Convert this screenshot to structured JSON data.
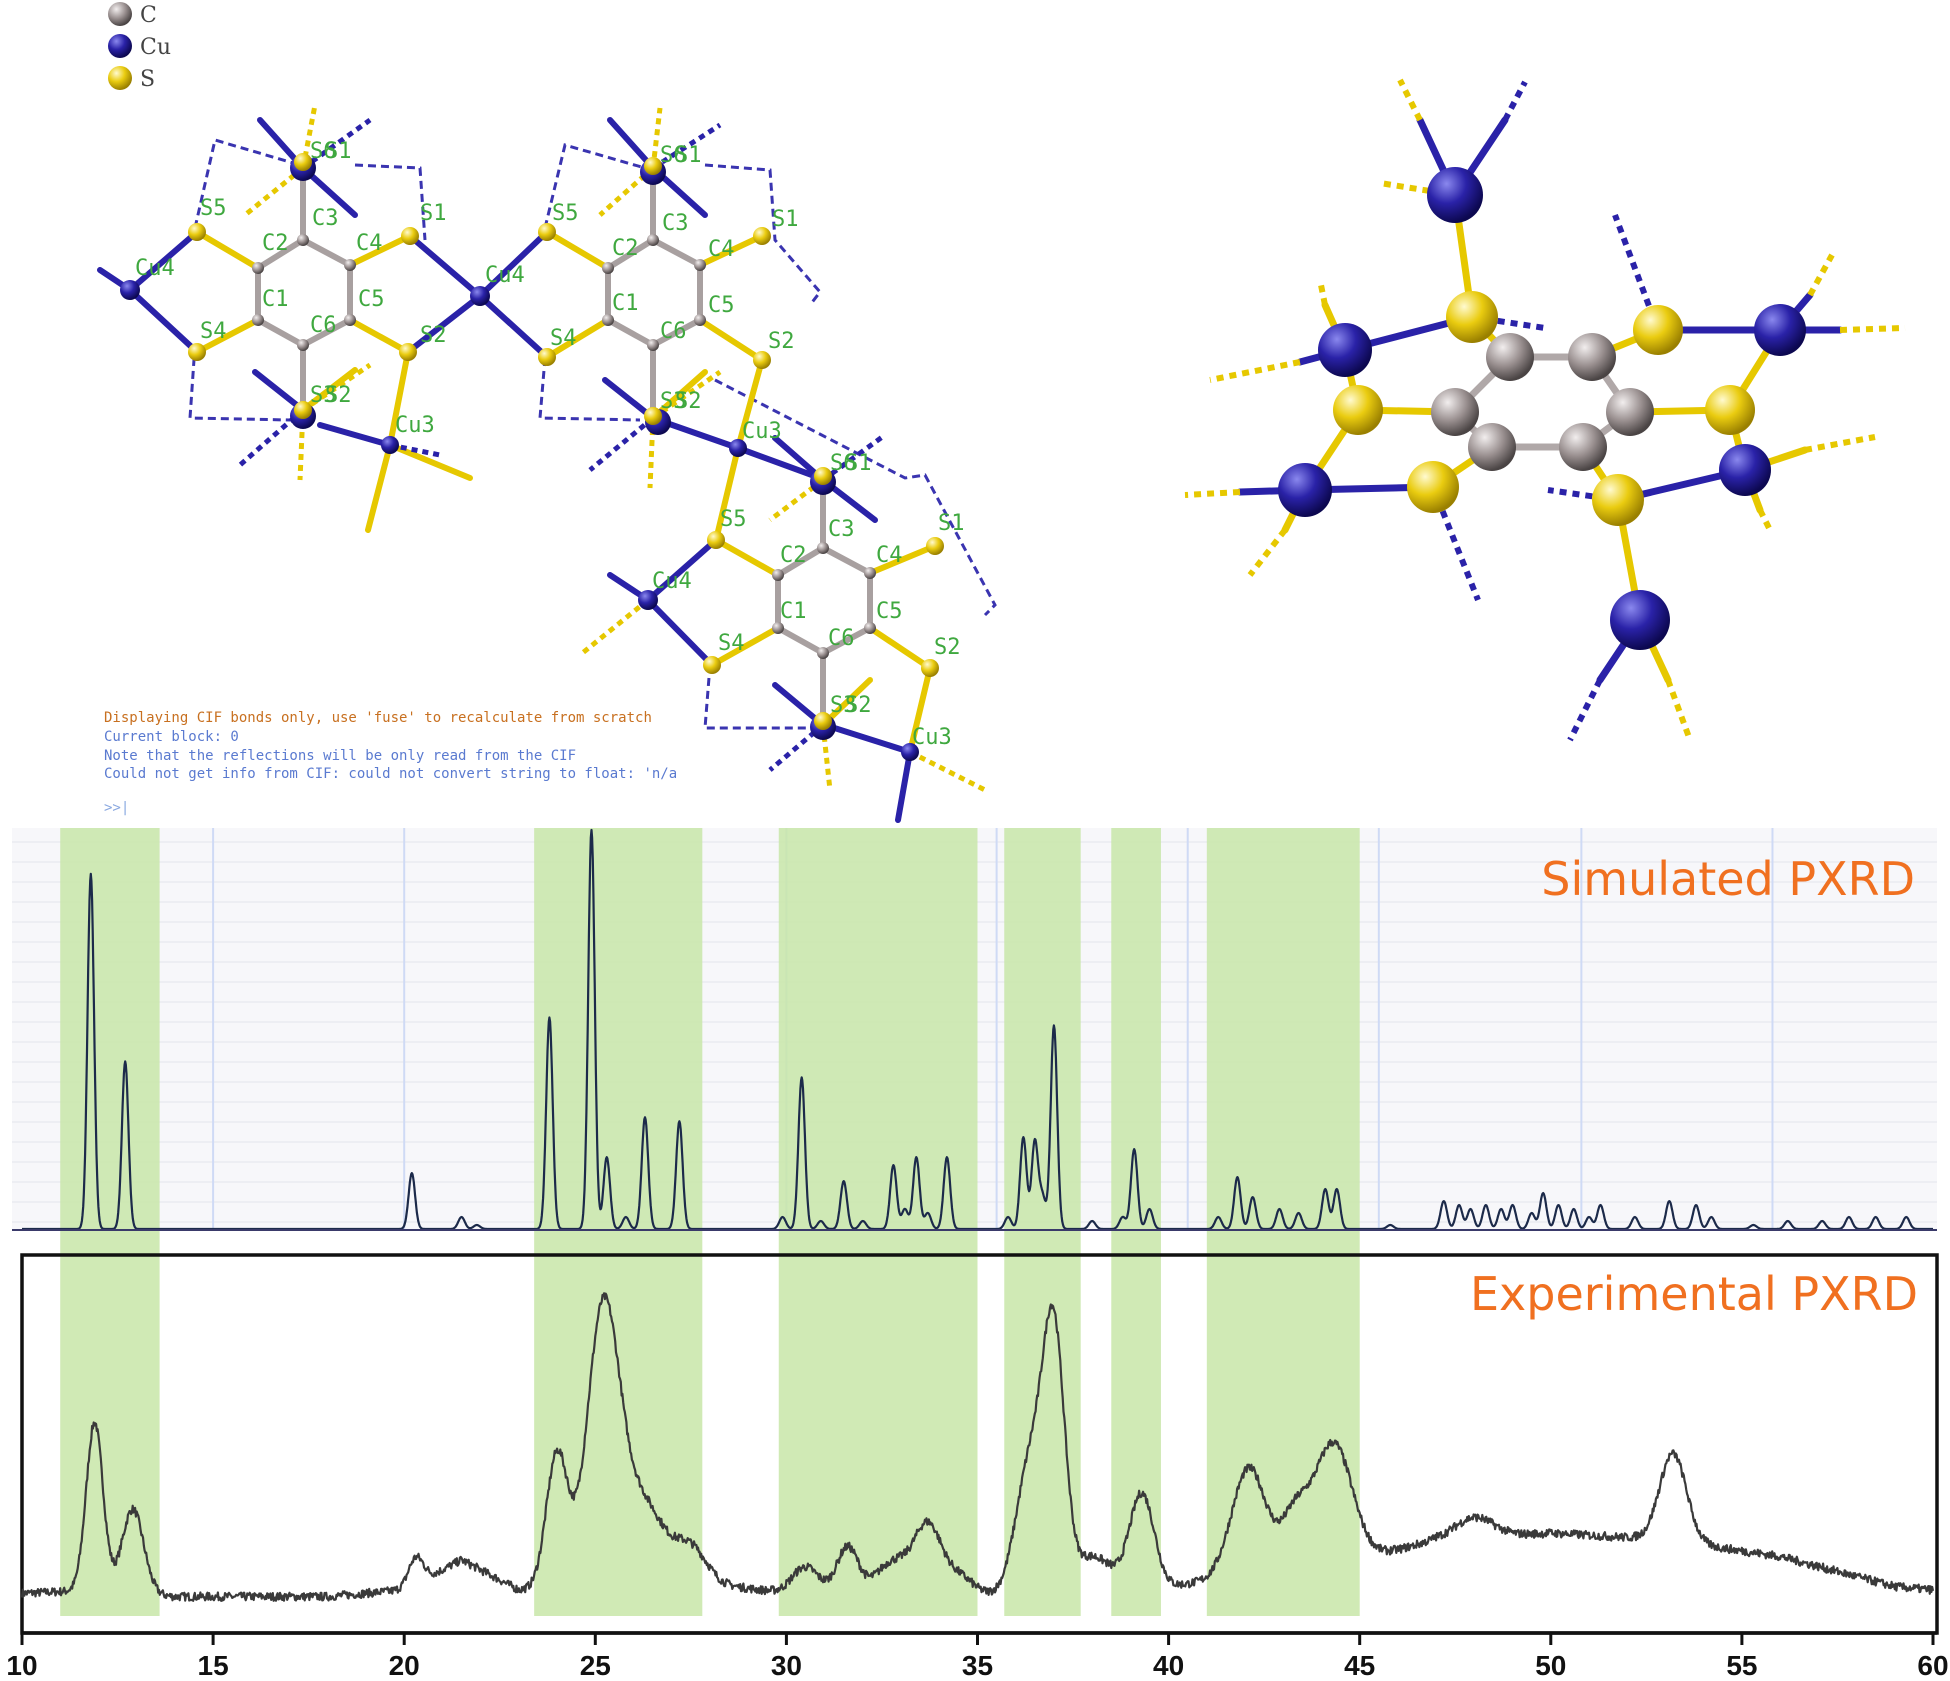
{
  "legend": {
    "items": [
      {
        "label": "C",
        "color": "#8c8c8c"
      },
      {
        "label": "Cu",
        "color": "#1a1a8c"
      },
      {
        "label": "S",
        "color": "#e6c800"
      }
    ]
  },
  "atom_labels": {
    "unit1": [
      "S6",
      "S1",
      "C3",
      "S5",
      "S1",
      "C2",
      "C4",
      "Cu4",
      "Cu4",
      "C1",
      "C5",
      "S4",
      "C6",
      "S2",
      "S3",
      "S2",
      "Cu3"
    ],
    "unit2": [
      "S6",
      "S1",
      "C3",
      "S5",
      "S1",
      "C2",
      "C4",
      "C1",
      "C5",
      "S4",
      "C6",
      "S2",
      "S3",
      "S2",
      "Cu3"
    ],
    "unit3": [
      "S6",
      "S1",
      "C3",
      "S5",
      "S1",
      "C2",
      "C4",
      "Cu4",
      "C1",
      "C5",
      "S4",
      "C6",
      "S2",
      "S3",
      "S2",
      "Cu3"
    ]
  },
  "console": {
    "line1": "Displaying CIF bonds only, use 'fuse' to recalculate from scratch",
    "line2": "Current block: 0",
    "line3": "Note that the reflections will be only read from the CIF",
    "line4": "Could not get info from CIF: could not convert string to float: 'n/a",
    "prompt": ">>|"
  },
  "colors": {
    "highlight": "#c8e6a8",
    "title": "#f07020",
    "sim_line": "#1c2a4a",
    "exp_line": "#3a3a3a",
    "carbon": "#8c8c8c",
    "copper": "#1a1a8c",
    "sulfur": "#e6c800",
    "atom_label": "#3fa83f"
  },
  "chart_data": {
    "type": "line",
    "xlim": [
      10,
      60
    ],
    "x_ticks": [
      "10",
      "15",
      "20",
      "25",
      "30",
      "35",
      "40",
      "45",
      "50",
      "55",
      "60"
    ],
    "highlight_bands": [
      [
        11,
        13.6
      ],
      [
        23.4,
        27.8
      ],
      [
        29.8,
        35
      ],
      [
        35.7,
        37.7
      ],
      [
        38.5,
        39.8
      ],
      [
        41.0,
        45.0
      ]
    ],
    "series": [
      {
        "name": "Simulated PXRD",
        "peaks": [
          [
            11.8,
            0.89
          ],
          [
            12.7,
            0.42
          ],
          [
            20.2,
            0.14
          ],
          [
            21.5,
            0.03
          ],
          [
            21.9,
            0.01
          ],
          [
            23.8,
            0.53
          ],
          [
            24.9,
            1.0
          ],
          [
            25.3,
            0.18
          ],
          [
            25.8,
            0.03
          ],
          [
            26.3,
            0.28
          ],
          [
            27.2,
            0.27
          ],
          [
            29.9,
            0.03
          ],
          [
            30.4,
            0.38
          ],
          [
            30.9,
            0.02
          ],
          [
            31.5,
            0.12
          ],
          [
            32.0,
            0.02
          ],
          [
            32.8,
            0.16
          ],
          [
            33.1,
            0.05
          ],
          [
            33.4,
            0.18
          ],
          [
            33.7,
            0.04
          ],
          [
            34.2,
            0.18
          ],
          [
            35.8,
            0.03
          ],
          [
            36.2,
            0.23
          ],
          [
            36.5,
            0.22
          ],
          [
            36.7,
            0.08
          ],
          [
            37.0,
            0.51
          ],
          [
            38.0,
            0.02
          ],
          [
            38.8,
            0.03
          ],
          [
            39.1,
            0.2
          ],
          [
            39.5,
            0.05
          ],
          [
            41.3,
            0.03
          ],
          [
            41.8,
            0.13
          ],
          [
            42.2,
            0.08
          ],
          [
            42.9,
            0.05
          ],
          [
            43.4,
            0.04
          ],
          [
            44.1,
            0.1
          ],
          [
            44.4,
            0.1
          ],
          [
            45.8,
            0.01
          ],
          [
            47.2,
            0.07
          ],
          [
            47.6,
            0.06
          ],
          [
            47.9,
            0.05
          ],
          [
            48.3,
            0.06
          ],
          [
            48.7,
            0.05
          ],
          [
            49.0,
            0.06
          ],
          [
            49.5,
            0.04
          ],
          [
            49.8,
            0.09
          ],
          [
            50.2,
            0.06
          ],
          [
            50.6,
            0.05
          ],
          [
            51.0,
            0.03
          ],
          [
            51.3,
            0.06
          ],
          [
            52.2,
            0.03
          ],
          [
            53.1,
            0.07
          ],
          [
            53.8,
            0.06
          ],
          [
            54.2,
            0.03
          ],
          [
            55.3,
            0.01
          ],
          [
            56.2,
            0.02
          ],
          [
            57.1,
            0.02
          ],
          [
            57.8,
            0.03
          ],
          [
            58.5,
            0.03
          ],
          [
            59.3,
            0.03
          ]
        ]
      },
      {
        "name": "Experimental PXRD",
        "baseline": [
          [
            10,
            0.02
          ],
          [
            12,
            0.03
          ],
          [
            14,
            0.01
          ],
          [
            18,
            0.01
          ],
          [
            20,
            0.03
          ],
          [
            21.5,
            0.12
          ],
          [
            23,
            0.03
          ],
          [
            28,
            0.05
          ],
          [
            30,
            0.02
          ],
          [
            35,
            0.01
          ],
          [
            38,
            0.03
          ],
          [
            40,
            0.04
          ],
          [
            45,
            0.12
          ],
          [
            47,
            0.18
          ],
          [
            50,
            0.2
          ],
          [
            53,
            0.18
          ],
          [
            56,
            0.13
          ],
          [
            59,
            0.04
          ],
          [
            60,
            0.03
          ]
        ],
        "peaks": [
          [
            11.9,
            0.5,
            0.22
          ],
          [
            12.9,
            0.25,
            0.28
          ],
          [
            20.3,
            0.08,
            0.2
          ],
          [
            24.0,
            0.4,
            0.28
          ],
          [
            25.2,
            0.8,
            0.42
          ],
          [
            26.2,
            0.25,
            0.6
          ],
          [
            27.5,
            0.1,
            0.4
          ],
          [
            30.5,
            0.08,
            0.35
          ],
          [
            31.6,
            0.14,
            0.28
          ],
          [
            32.8,
            0.1,
            0.45
          ],
          [
            33.7,
            0.2,
            0.35
          ],
          [
            34.5,
            0.06,
            0.4
          ],
          [
            36.4,
            0.4,
            0.38
          ],
          [
            37.0,
            0.72,
            0.28
          ],
          [
            38.0,
            0.1,
            0.5
          ],
          [
            39.3,
            0.28,
            0.32
          ],
          [
            42.1,
            0.32,
            0.45
          ],
          [
            43.3,
            0.15,
            0.35
          ],
          [
            44.3,
            0.36,
            0.5
          ],
          [
            48.0,
            0.06,
            0.5
          ],
          [
            53.2,
            0.26,
            0.35
          ]
        ]
      }
    ]
  }
}
